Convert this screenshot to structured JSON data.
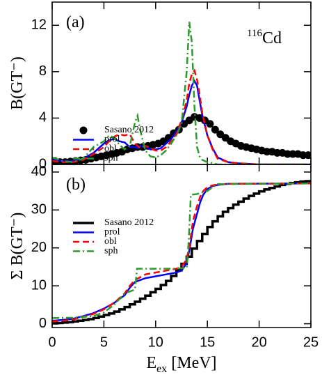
{
  "chart_data": [
    {
      "type": "line",
      "label": "(a)",
      "isotope": {
        "mass": "116",
        "symbol": "Cd"
      },
      "ylabel": "B(GT⁻)",
      "xlim": [
        0,
        25
      ],
      "xticks": [
        0,
        5,
        10,
        15,
        20,
        25
      ],
      "ylim": [
        0,
        14
      ],
      "yticks": [
        0,
        4,
        8,
        12
      ],
      "legend": "upper left",
      "series": [
        {
          "name": "Sasano 2012",
          "color": "#000000",
          "marker": "circle",
          "x": [
            0.25,
            0.75,
            1.25,
            1.75,
            2.25,
            2.75,
            3.25,
            3.75,
            4.25,
            4.75,
            5.25,
            5.75,
            6.25,
            6.75,
            7.25,
            7.75,
            8.25,
            8.75,
            9.25,
            9.75,
            10.25,
            10.75,
            11.25,
            11.75,
            12.25,
            12.75,
            13.25,
            13.75,
            14.25,
            14.75,
            15.25,
            15.75,
            16.25,
            16.75,
            17.25,
            17.75,
            18.25,
            18.75,
            19.25,
            19.75,
            20.25,
            20.75,
            21.25,
            21.75,
            22.25,
            22.75,
            23.25,
            23.75,
            24.25,
            24.75
          ],
          "values": [
            0.3,
            0.2,
            0.2,
            0.25,
            0.3,
            0.35,
            0.4,
            0.5,
            0.6,
            0.7,
            0.8,
            0.9,
            1.0,
            1.1,
            1.3,
            1.4,
            1.5,
            1.5,
            1.6,
            1.7,
            1.8,
            2.0,
            2.3,
            2.7,
            3.0,
            3.5,
            3.8,
            4.1,
            4.0,
            3.8,
            3.5,
            3.0,
            2.6,
            2.3,
            2.0,
            1.8,
            1.6,
            1.5,
            1.4,
            1.3,
            1.2,
            1.1,
            1.1,
            1.0,
            1.0,
            0.9,
            0.9,
            0.9,
            0.8,
            0.8
          ]
        },
        {
          "name": "prol",
          "color": "#0000ff",
          "dash": "solid",
          "x": [
            0,
            1,
            2,
            3,
            4,
            5,
            5.5,
            6,
            6.5,
            7,
            7.5,
            8,
            8.25,
            8.5,
            9,
            9.5,
            10,
            10.5,
            11,
            11.5,
            12,
            12.5,
            13,
            13.25,
            13.5,
            13.75,
            14,
            14.25,
            14.5,
            15,
            15.5,
            16,
            17,
            18,
            20,
            22,
            25
          ],
          "values": [
            0.4,
            0.3,
            0.3,
            0.5,
            1.0,
            1.8,
            2.1,
            2.2,
            2.0,
            1.9,
            1.5,
            1.5,
            1.4,
            1.6,
            1.5,
            1.3,
            1.3,
            1.4,
            1.8,
            2.2,
            2.8,
            3.6,
            5.0,
            6.0,
            6.8,
            7.2,
            6.8,
            5.5,
            4.3,
            2.5,
            1.4,
            0.6,
            0.2,
            0.1,
            0,
            0,
            0
          ]
        },
        {
          "name": "obl",
          "color": "#ff0000",
          "dash": "dashed",
          "x": [
            0,
            1,
            2,
            3,
            4,
            5,
            5.5,
            6,
            6.5,
            7,
            7.5,
            8,
            8.25,
            8.5,
            9,
            9.5,
            10,
            10.5,
            11,
            11.5,
            12,
            12.5,
            13,
            13.25,
            13.5,
            13.75,
            14,
            14.25,
            14.5,
            15,
            15.5,
            16,
            17,
            18,
            20,
            22,
            25
          ],
          "values": [
            0.3,
            0.2,
            0.2,
            0.4,
            0.9,
            1.5,
            2.0,
            2.4,
            2.6,
            2.5,
            2.6,
            1.8,
            1.6,
            1.4,
            1.6,
            1.4,
            1.2,
            1.2,
            1.5,
            2.0,
            2.6,
            3.8,
            5.5,
            7.0,
            7.8,
            8.1,
            7.3,
            6.0,
            4.5,
            2.5,
            1.3,
            0.5,
            0.2,
            0.1,
            0,
            0,
            0
          ]
        },
        {
          "name": "sph",
          "color": "#2a9a2a",
          "dash": "dashdot",
          "x": [
            0,
            1,
            2,
            3,
            4,
            5,
            5.5,
            6,
            6.5,
            7,
            7.5,
            8,
            8.25,
            8.5,
            9,
            9.5,
            10,
            10.5,
            11,
            11.5,
            12,
            12.5,
            13,
            13.25,
            13.5,
            13.75,
            14,
            14.25,
            14.5,
            15,
            15.5,
            16,
            17,
            18,
            20,
            22,
            25
          ],
          "values": [
            0.6,
            0.3,
            0.2,
            0.5,
            1.5,
            2.0,
            2.5,
            2.3,
            1.7,
            1.3,
            1.6,
            3.6,
            4.2,
            3.0,
            1.2,
            0.7,
            0.6,
            0.8,
            1.2,
            1.8,
            2.5,
            3.5,
            8.0,
            12.3,
            10.5,
            5.0,
            1.5,
            0.7,
            0.4,
            0.2,
            0.1,
            0,
            0,
            0,
            0,
            0,
            0
          ]
        }
      ]
    },
    {
      "type": "line",
      "label": "(b)",
      "ylabel": "Σ B(GT⁻)",
      "xlabel": {
        "main": "E",
        "sub": "ex",
        "unit": "[MeV]"
      },
      "xlim": [
        0,
        25
      ],
      "xticks": [
        0,
        5,
        10,
        15,
        20,
        25
      ],
      "ylim": [
        -1,
        42
      ],
      "yticks": [
        0,
        10,
        20,
        30,
        40
      ],
      "legend": "upper left",
      "series": [
        {
          "name": "Sasano 2012",
          "color": "#000000",
          "step": "post",
          "dash": "solid",
          "x": [
            0,
            0.5,
            1,
            1.5,
            2,
            2.5,
            3,
            3.5,
            4,
            4.5,
            5,
            5.5,
            6,
            6.5,
            7,
            7.5,
            8,
            8.5,
            9,
            9.5,
            10,
            10.5,
            11,
            11.5,
            12,
            12.5,
            13,
            13.5,
            14,
            14.5,
            15,
            15.5,
            16,
            16.5,
            17,
            17.5,
            18,
            18.5,
            19,
            19.5,
            20,
            20.5,
            21,
            21.5,
            22,
            22.5,
            23,
            23.5,
            24,
            24.5
          ],
          "values": [
            0.1,
            0.2,
            0.3,
            0.4,
            0.6,
            0.8,
            1.0,
            1.2,
            1.5,
            1.9,
            2.3,
            2.7,
            3.2,
            3.8,
            4.4,
            5.1,
            5.8,
            6.6,
            7.4,
            8.3,
            9.2,
            10.2,
            11.3,
            12.6,
            14.1,
            15.8,
            17.7,
            19.8,
            21.8,
            23.7,
            25.5,
            27.0,
            28.3,
            29.5,
            30.5,
            31.4,
            32.2,
            33.0,
            33.7,
            34.3,
            34.9,
            35.4,
            35.8,
            36.2,
            36.6,
            36.9,
            37.1,
            37.3,
            37.5,
            37.6
          ]
        },
        {
          "name": "prol",
          "color": "#0000ff",
          "dash": "solid",
          "x": [
            0,
            1,
            2,
            3,
            4,
            5,
            6,
            7,
            7.5,
            8,
            9,
            10,
            11,
            12,
            12.5,
            13,
            13.3,
            13.6,
            14,
            14.3,
            14.6,
            15,
            15.5,
            16,
            17,
            25
          ],
          "values": [
            0.8,
            1,
            1.3,
            2,
            2.8,
            4,
            5.5,
            7.5,
            9.5,
            11,
            12,
            12.5,
            13,
            13.5,
            14,
            16,
            20,
            25,
            29,
            32,
            34,
            35.5,
            36.3,
            36.6,
            36.9,
            37
          ]
        },
        {
          "name": "obl",
          "color": "#ff0000",
          "dash": "dashed",
          "x": [
            0,
            1,
            2,
            3,
            4,
            5,
            6,
            7,
            7.5,
            8,
            9,
            10,
            11,
            12,
            12.5,
            13,
            13.3,
            13.6,
            14,
            14.3,
            14.6,
            15,
            15.5,
            16,
            17,
            25
          ],
          "values": [
            0.6,
            0.8,
            1.1,
            1.8,
            2.6,
            3.8,
            5.5,
            8,
            10,
            11.5,
            13,
            13.5,
            14,
            14.5,
            15,
            17,
            21,
            27,
            31,
            33.5,
            35,
            36,
            36.5,
            36.7,
            36.9,
            37
          ]
        },
        {
          "name": "sph",
          "color": "#2a9a2a",
          "dash": "dashdot",
          "x": [
            0,
            2,
            4,
            5,
            6,
            7,
            8,
            8.2,
            9,
            10,
            11,
            12,
            13,
            13.2,
            13.4,
            14,
            15,
            15.5,
            16,
            25
          ],
          "values": [
            1.5,
            1.6,
            2,
            3,
            5,
            8,
            9,
            14.5,
            14.5,
            14.5,
            14.5,
            14.5,
            14.8,
            22,
            34,
            34.2,
            35,
            36,
            36.8,
            37
          ]
        }
      ]
    }
  ]
}
